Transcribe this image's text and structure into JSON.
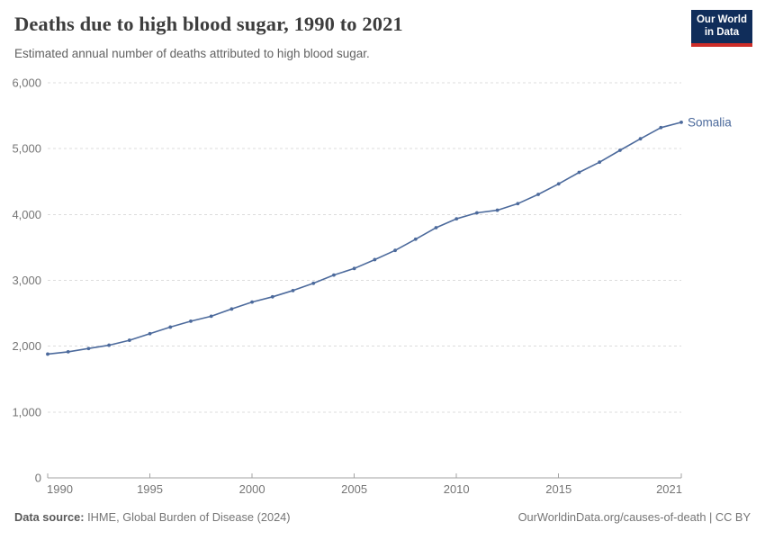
{
  "header": {
    "title": "Deaths due to high blood sugar, 1990 to 2021",
    "subtitle": "Estimated annual number of deaths attributed to high blood sugar.",
    "logo": {
      "line1": "Our World",
      "line2": "in Data"
    }
  },
  "colors": {
    "series_line": "#4c6a9c",
    "series_label": "#4c6a9c",
    "grid_line": "#dcdcdc",
    "axis_line": "#a3a3a3",
    "tick_label": "#757575",
    "logo_bg": "#102d5a",
    "logo_red_bar": "#cd2d28",
    "title_text": "#3d3d3d",
    "subtitle_text": "#616161"
  },
  "chart_data": {
    "type": "line",
    "title": "Deaths due to high blood sugar, 1990 to 2021",
    "subtitle": "Estimated annual number of deaths attributed to high blood sugar.",
    "xlabel": "",
    "ylabel": "",
    "xlim": [
      1990,
      2021
    ],
    "ylim": [
      0,
      6000
    ],
    "grid": "horizontal-dashed",
    "legend_position": "end-of-line-label",
    "xticks": [
      1990,
      1995,
      2000,
      2005,
      2010,
      2015,
      2021
    ],
    "xtick_labels": [
      "1990",
      "1995",
      "2000",
      "2005",
      "2010",
      "2015",
      "2021"
    ],
    "yticks": [
      0,
      1000,
      2000,
      3000,
      4000,
      5000,
      6000
    ],
    "ytick_labels": [
      "0",
      "1,000",
      "2,000",
      "3,000",
      "4,000",
      "5,000",
      "6,000"
    ],
    "series": [
      {
        "name": "Somalia",
        "x": [
          1990,
          1991,
          1992,
          1993,
          1994,
          1995,
          1996,
          1997,
          1998,
          1999,
          2000,
          2001,
          2002,
          2003,
          2004,
          2005,
          2006,
          2007,
          2008,
          2009,
          2010,
          2011,
          2012,
          2013,
          2014,
          2015,
          2016,
          2017,
          2018,
          2019,
          2020,
          2021
        ],
        "values": [
          1880,
          1915,
          1965,
          2015,
          2090,
          2190,
          2290,
          2380,
          2455,
          2565,
          2670,
          2750,
          2845,
          2955,
          3080,
          3180,
          3315,
          3455,
          3625,
          3800,
          3935,
          4025,
          4065,
          4165,
          4305,
          4465,
          4640,
          4795,
          4975,
          5150,
          5320,
          5400
        ]
      }
    ]
  },
  "footer": {
    "source_label": "Data source:",
    "source_text": " IHME, Global Burden of Disease (2024)",
    "credit": "OurWorldinData.org/causes-of-death | CC BY"
  }
}
